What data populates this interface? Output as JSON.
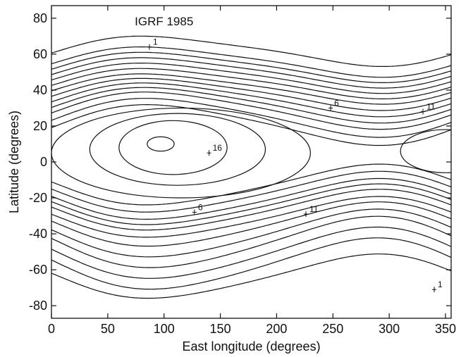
{
  "chart_data": {
    "type": "contour",
    "title": "IGRF 1985",
    "xlabel": "East longitude (degrees)",
    "ylabel": "Latitude (degrees)",
    "xlim": [
      0,
      355
    ],
    "ylim": [
      -87,
      87
    ],
    "x_ticks": [
      0,
      50,
      100,
      150,
      200,
      250,
      300,
      350
    ],
    "y_ticks": [
      -80,
      -60,
      -40,
      -20,
      0,
      20,
      40,
      60,
      80
    ],
    "grid": false,
    "contour_levels": 16,
    "center_latitude": 6,
    "center_wave": {
      "phase_deg": 280,
      "amplitude_deg": 10
    },
    "northern_contours": [
      {
        "name": "1",
        "baseline": 62,
        "amplitude": 8
      },
      {
        "baseline": 56,
        "amplitude": 8
      },
      {
        "baseline": 53,
        "amplitude": 8
      },
      {
        "baseline": 50,
        "amplitude": 8
      },
      {
        "baseline": 47,
        "amplitude": 8
      },
      {
        "baseline": 44,
        "amplitude": 8
      },
      {
        "name": "6",
        "baseline": 41,
        "amplitude": 8
      },
      {
        "baseline": 38,
        "amplitude": 8.5
      },
      {
        "baseline": 35,
        "amplitude": 9
      },
      {
        "baseline": 32,
        "amplitude": 9.5
      },
      {
        "name": "11",
        "baseline": 29,
        "amplitude": 10
      },
      {
        "baseline": 25,
        "amplitude": 10.5
      },
      {
        "baseline": 21,
        "amplitude": 11
      }
    ],
    "southern_contours": [
      {
        "baseline": -13,
        "amplitude": 11
      },
      {
        "baseline": -17,
        "amplitude": 11
      },
      {
        "name": "11",
        "baseline": -21,
        "amplitude": 11
      },
      {
        "baseline": -24,
        "amplitude": 11
      },
      {
        "baseline": -27,
        "amplitude": 11
      },
      {
        "name": "6",
        "baseline": -31,
        "amplitude": 11
      },
      {
        "baseline": -35,
        "amplitude": 12
      },
      {
        "baseline": -40,
        "amplitude": 13
      },
      {
        "baseline": -45,
        "amplitude": 14
      },
      {
        "baseline": -51,
        "amplitude": 14
      },
      {
        "baseline": -57,
        "amplitude": 14
      },
      {
        "name": "1",
        "baseline": -64,
        "amplitude": 12
      }
    ],
    "closed_contours": [
      {
        "name": "16",
        "cx": 97,
        "cy": 10,
        "rx": 12,
        "ry": 4
      },
      {
        "cx": 108,
        "cy": 8,
        "rx": 48,
        "ry": 15
      },
      {
        "cx": 112,
        "cy": 7,
        "rx": 78,
        "ry": 20
      },
      {
        "cx": 115,
        "cy": 5,
        "rx": 115,
        "ry": 25
      },
      {
        "cx": 350,
        "cy": 6,
        "rx": 40,
        "ry": 12
      }
    ],
    "contour_labels": [
      {
        "text": "1",
        "x": 87,
        "y": 64
      },
      {
        "text": "6",
        "x": 248,
        "y": 30
      },
      {
        "text": "11",
        "x": 330,
        "y": 28
      },
      {
        "text": "16",
        "x": 140,
        "y": 5
      },
      {
        "text": "6",
        "x": 127,
        "y": -28
      },
      {
        "text": "11",
        "x": 226,
        "y": -29
      },
      {
        "text": "1",
        "x": 340,
        "y": -71
      }
    ]
  }
}
